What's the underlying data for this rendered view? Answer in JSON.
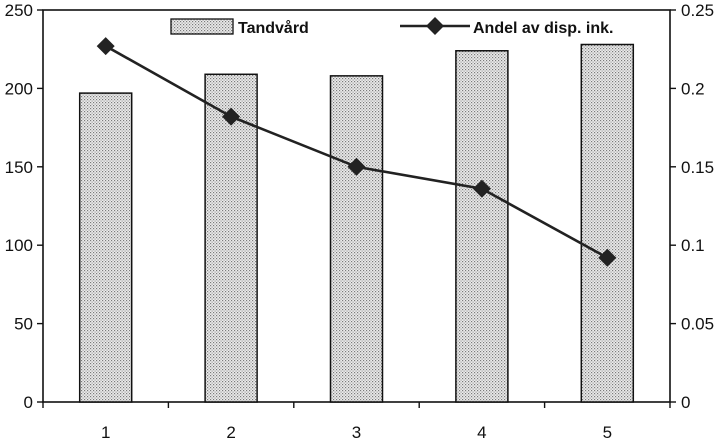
{
  "chart_data": {
    "type": "bar",
    "categories": [
      "1",
      "2",
      "3",
      "4",
      "5"
    ],
    "series": [
      {
        "name": "Tandvård",
        "type": "bar",
        "axis": "left",
        "values": [
          197,
          209,
          208,
          224,
          228
        ]
      },
      {
        "name": "Andel av disp. ink.",
        "type": "line",
        "axis": "right",
        "marker": "diamond",
        "values": [
          0.227,
          0.182,
          0.15,
          0.136,
          0.092
        ]
      }
    ],
    "y_left": {
      "min": 0,
      "max": 250,
      "ticks": [
        0,
        50,
        100,
        150,
        200,
        250
      ]
    },
    "y_right": {
      "min": 0,
      "max": 0.25,
      "ticks": [
        "0",
        "0.05",
        "0.1",
        "0.15",
        "0.2",
        "0.25"
      ]
    },
    "legend_placement": "top",
    "grid": false,
    "colors": {
      "bar_fill": "#d9d9d9",
      "bar_stroke": "#111111",
      "line": "#222222",
      "marker": "#222222"
    }
  }
}
